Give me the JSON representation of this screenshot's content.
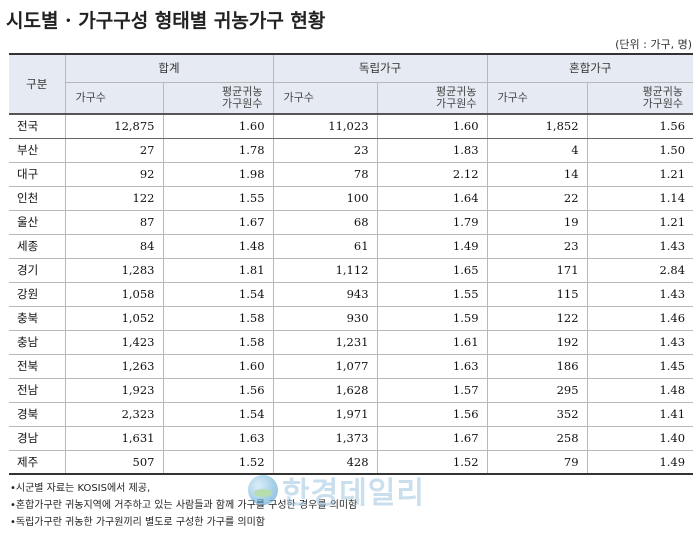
{
  "title": "시도별 · 가구구성 형태별 귀농가구 현황",
  "unit": "(단위 : 가구, 명)",
  "headers": {
    "region": "구분",
    "groups": [
      "합계",
      "독립가구",
      "혼합가구"
    ],
    "households": "가구수",
    "avg_members": "평균귀농\n가구원수"
  },
  "rows": [
    {
      "region": "전국",
      "total_hh": "12,875",
      "total_avg": "1.60",
      "ind_hh": "11,023",
      "ind_avg": "1.60",
      "mix_hh": "1,852",
      "mix_avg": "1.56"
    },
    {
      "region": "부산",
      "total_hh": "27",
      "total_avg": "1.78",
      "ind_hh": "23",
      "ind_avg": "1.83",
      "mix_hh": "4",
      "mix_avg": "1.50"
    },
    {
      "region": "대구",
      "total_hh": "92",
      "total_avg": "1.98",
      "ind_hh": "78",
      "ind_avg": "2.12",
      "mix_hh": "14",
      "mix_avg": "1.21"
    },
    {
      "region": "인천",
      "total_hh": "122",
      "total_avg": "1.55",
      "ind_hh": "100",
      "ind_avg": "1.64",
      "mix_hh": "22",
      "mix_avg": "1.14"
    },
    {
      "region": "울산",
      "total_hh": "87",
      "total_avg": "1.67",
      "ind_hh": "68",
      "ind_avg": "1.79",
      "mix_hh": "19",
      "mix_avg": "1.21"
    },
    {
      "region": "세종",
      "total_hh": "84",
      "total_avg": "1.48",
      "ind_hh": "61",
      "ind_avg": "1.49",
      "mix_hh": "23",
      "mix_avg": "1.43"
    },
    {
      "region": "경기",
      "total_hh": "1,283",
      "total_avg": "1.81",
      "ind_hh": "1,112",
      "ind_avg": "1.65",
      "mix_hh": "171",
      "mix_avg": "2.84"
    },
    {
      "region": "강원",
      "total_hh": "1,058",
      "total_avg": "1.54",
      "ind_hh": "943",
      "ind_avg": "1.55",
      "mix_hh": "115",
      "mix_avg": "1.43"
    },
    {
      "region": "충북",
      "total_hh": "1,052",
      "total_avg": "1.58",
      "ind_hh": "930",
      "ind_avg": "1.59",
      "mix_hh": "122",
      "mix_avg": "1.46"
    },
    {
      "region": "충남",
      "total_hh": "1,423",
      "total_avg": "1.58",
      "ind_hh": "1,231",
      "ind_avg": "1.61",
      "mix_hh": "192",
      "mix_avg": "1.43"
    },
    {
      "region": "전북",
      "total_hh": "1,263",
      "total_avg": "1.60",
      "ind_hh": "1,077",
      "ind_avg": "1.63",
      "mix_hh": "186",
      "mix_avg": "1.45"
    },
    {
      "region": "전남",
      "total_hh": "1,923",
      "total_avg": "1.56",
      "ind_hh": "1,628",
      "ind_avg": "1.57",
      "mix_hh": "295",
      "mix_avg": "1.48"
    },
    {
      "region": "경북",
      "total_hh": "2,323",
      "total_avg": "1.54",
      "ind_hh": "1,971",
      "ind_avg": "1.56",
      "mix_hh": "352",
      "mix_avg": "1.41"
    },
    {
      "region": "경남",
      "total_hh": "1,631",
      "total_avg": "1.63",
      "ind_hh": "1,373",
      "ind_avg": "1.67",
      "mix_hh": "258",
      "mix_avg": "1.40"
    },
    {
      "region": "제주",
      "total_hh": "507",
      "total_avg": "1.52",
      "ind_hh": "428",
      "ind_avg": "1.52",
      "mix_hh": "79",
      "mix_avg": "1.49"
    }
  ],
  "notes": [
    "•시군별 자료는 KOSIS에서 제공,",
    "•혼합가구란 귀농지역에 거주하고 있는 사람들과 함께 가구를 구성한 경우를 의미함",
    "•독립가구란 귀농한 가구원끼리 별도로 구성한 가구를 의미함"
  ],
  "watermark": {
    "text": "한경데일리",
    "icon": "globe-logo-icon"
  }
}
